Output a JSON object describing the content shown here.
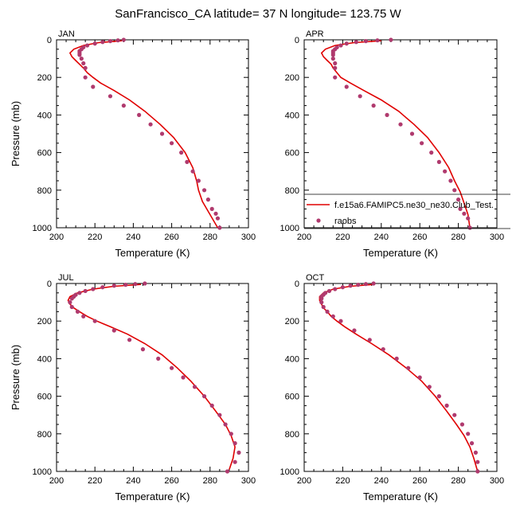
{
  "title": "SanFrancisco_CA  latitude= 37 N longitude= 123.75 W",
  "colors": {
    "model": "#e00000",
    "obs": "#b03a6e",
    "axis": "#000000"
  },
  "legend": {
    "model_label": "f.e15a6.FAMIPC5.ne30_ne30.Club_Test.",
    "obs_label": "raobs",
    "placement": "lower-right of APR panel"
  },
  "chart_data": [
    {
      "type": "line",
      "panel": "JAN",
      "xlabel": "Temperature (K)",
      "ylabel": "Pressure (mb)",
      "xlim": [
        200,
        300
      ],
      "ylim": [
        1000,
        0
      ],
      "xticks": [
        "200",
        "220",
        "240",
        "260",
        "280",
        "300"
      ],
      "yticks": [
        "0",
        "200",
        "400",
        "600",
        "800",
        "1000"
      ],
      "series": [
        {
          "kind": "model-line",
          "x": [
            234,
            222,
            214,
            209,
            207,
            208,
            210,
            212,
            214,
            216,
            219,
            223,
            230,
            238,
            246,
            254,
            261,
            267,
            271,
            273,
            274,
            276,
            280,
            284
          ],
          "y": [
            5,
            15,
            30,
            50,
            70,
            90,
            110,
            130,
            150,
            175,
            200,
            230,
            270,
            320,
            380,
            450,
            520,
            600,
            680,
            750,
            800,
            860,
            930,
            1000
          ]
        },
        {
          "kind": "obs-points",
          "x": [
            235,
            232,
            228,
            224,
            220,
            216,
            214,
            213,
            212,
            212,
            212,
            213,
            214,
            215,
            215,
            219,
            228,
            235,
            243,
            249,
            255,
            260,
            265,
            268,
            271,
            274,
            277,
            279,
            281,
            283,
            284,
            285
          ],
          "y": [
            0,
            3,
            7,
            12,
            20,
            30,
            40,
            50,
            60,
            70,
            80,
            100,
            125,
            150,
            200,
            250,
            300,
            350,
            400,
            450,
            500,
            550,
            600,
            650,
            700,
            750,
            800,
            850,
            900,
            925,
            950,
            1000
          ]
        }
      ]
    },
    {
      "type": "line",
      "panel": "APR",
      "xlabel": "Temperature (K)",
      "ylabel": "",
      "xlim": [
        200,
        300
      ],
      "ylim": [
        1000,
        0
      ],
      "xticks": [
        "200",
        "220",
        "240",
        "260",
        "280",
        "300"
      ],
      "yticks": [
        "0",
        "200",
        "400",
        "600",
        "800",
        "1000"
      ],
      "series": [
        {
          "kind": "model-line",
          "x": [
            240,
            226,
            216,
            211,
            209,
            210,
            212,
            214,
            215,
            217,
            219,
            224,
            231,
            240,
            249,
            257,
            264,
            270,
            275,
            278,
            281,
            283,
            285,
            286
          ],
          "y": [
            5,
            15,
            30,
            50,
            70,
            90,
            110,
            130,
            150,
            175,
            200,
            230,
            270,
            320,
            380,
            450,
            520,
            600,
            680,
            750,
            810,
            870,
            930,
            1000
          ]
        },
        {
          "kind": "obs-points",
          "x": [
            245,
            238,
            232,
            227,
            222,
            219,
            217,
            216,
            215,
            215,
            215,
            215,
            216,
            216,
            216,
            222,
            229,
            236,
            243,
            250,
            256,
            261,
            266,
            270,
            273,
            276,
            278,
            280,
            281,
            283,
            285,
            286
          ],
          "y": [
            0,
            3,
            7,
            12,
            20,
            30,
            40,
            50,
            60,
            70,
            80,
            100,
            125,
            150,
            200,
            250,
            300,
            350,
            400,
            450,
            500,
            550,
            600,
            650,
            700,
            750,
            800,
            850,
            900,
            925,
            950,
            1000
          ]
        }
      ]
    },
    {
      "type": "line",
      "panel": "JUL",
      "xlabel": "Temperature (K)",
      "ylabel": "Pressure (mb)",
      "xlim": [
        200,
        300
      ],
      "ylim": [
        1000,
        0
      ],
      "xticks": [
        "200",
        "220",
        "240",
        "260",
        "280",
        "300"
      ],
      "yticks": [
        "0",
        "200",
        "400",
        "600",
        "800",
        "1000"
      ],
      "series": [
        {
          "kind": "model-line",
          "x": [
            244,
            230,
            219,
            211,
            207,
            206,
            207,
            209,
            212,
            216,
            221,
            228,
            237,
            246,
            255,
            263,
            270,
            277,
            283,
            288,
            291,
            293,
            292,
            290
          ],
          "y": [
            5,
            15,
            30,
            50,
            70,
            90,
            110,
            130,
            150,
            175,
            200,
            230,
            270,
            320,
            380,
            450,
            520,
            600,
            680,
            750,
            810,
            870,
            930,
            990
          ]
        },
        {
          "kind": "obs-points",
          "x": [
            246,
            241,
            236,
            230,
            224,
            219,
            215,
            212,
            210,
            209,
            208,
            207,
            208,
            211,
            214,
            220,
            230,
            238,
            245,
            253,
            260,
            266,
            272,
            277,
            281,
            285,
            288,
            291,
            293,
            295,
            293,
            289
          ],
          "y": [
            0,
            3,
            7,
            12,
            20,
            30,
            40,
            50,
            60,
            70,
            80,
            100,
            125,
            150,
            175,
            200,
            250,
            300,
            350,
            400,
            450,
            500,
            550,
            600,
            650,
            700,
            750,
            800,
            850,
            900,
            950,
            1000
          ]
        }
      ]
    },
    {
      "type": "line",
      "panel": "OCT",
      "xlabel": "Temperature (K)",
      "ylabel": "",
      "xlim": [
        200,
        300
      ],
      "ylim": [
        1000,
        0
      ],
      "xticks": [
        "200",
        "220",
        "240",
        "260",
        "280",
        "300"
      ],
      "yticks": [
        "0",
        "200",
        "400",
        "600",
        "800",
        "1000"
      ],
      "series": [
        {
          "kind": "model-line",
          "x": [
            236,
            224,
            215,
            210,
            208,
            208,
            209,
            210,
            212,
            214,
            217,
            221,
            227,
            235,
            244,
            253,
            261,
            268,
            274,
            279,
            283,
            286,
            288,
            290
          ],
          "y": [
            5,
            15,
            30,
            50,
            70,
            90,
            110,
            130,
            150,
            175,
            200,
            230,
            270,
            320,
            380,
            450,
            520,
            600,
            680,
            750,
            810,
            870,
            930,
            1000
          ]
        },
        {
          "kind": "obs-points",
          "x": [
            236,
            232,
            228,
            224,
            220,
            216,
            213,
            211,
            210,
            209,
            209,
            209,
            210,
            212,
            215,
            219,
            226,
            234,
            241,
            248,
            254,
            260,
            265,
            270,
            274,
            278,
            282,
            285,
            287,
            289,
            290,
            290
          ],
          "y": [
            0,
            3,
            7,
            12,
            20,
            30,
            40,
            50,
            60,
            70,
            80,
            100,
            125,
            150,
            175,
            200,
            250,
            300,
            350,
            400,
            450,
            500,
            550,
            600,
            650,
            700,
            750,
            800,
            850,
            900,
            950,
            1000
          ]
        }
      ]
    }
  ]
}
